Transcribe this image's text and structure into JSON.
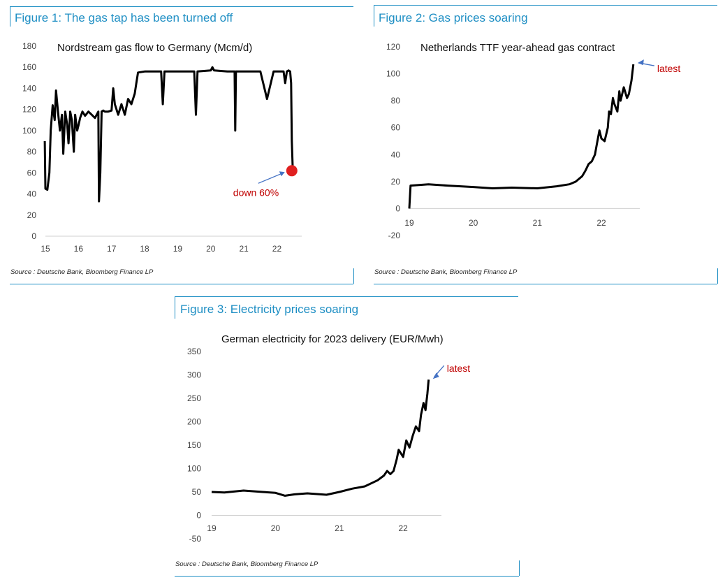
{
  "figures": [
    {
      "heading": "Figure 1: The gas tap has been turned off",
      "source": "Source : Deutsche Bank, Bloomberg Finance LP"
    },
    {
      "heading": "Figure 2: Gas prices soaring",
      "source": "Source : Deutsche Bank, Bloomberg Finance LP"
    },
    {
      "heading": "Figure 3: Electricity prices soaring",
      "source": "Source : Deutsche Bank, Bloomberg Finance LP"
    }
  ],
  "colors": {
    "frame": "#1f8fc4",
    "line": "#000000",
    "annotation": "#c00000",
    "arrow": "#4472c4",
    "marker": "#e02020"
  },
  "chart_data": [
    {
      "type": "line",
      "title": "Nordstream gas flow to Germany (Mcm/d)",
      "xlabel": "",
      "ylabel": "",
      "xlim": [
        15,
        22.75
      ],
      "ylim": [
        0,
        180
      ],
      "yticks": [
        0,
        20,
        40,
        60,
        80,
        100,
        120,
        140,
        160,
        180
      ],
      "xticks": [
        15,
        16,
        17,
        18,
        19,
        20,
        21,
        22
      ],
      "x": [
        14.98,
        15.0,
        15.06,
        15.12,
        15.16,
        15.22,
        15.28,
        15.32,
        15.38,
        15.44,
        15.5,
        15.54,
        15.6,
        15.66,
        15.7,
        15.75,
        15.8,
        15.86,
        15.9,
        15.96,
        16.0,
        16.05,
        16.12,
        16.2,
        16.3,
        16.4,
        16.5,
        16.6,
        16.62,
        16.66,
        16.7,
        16.75,
        16.8,
        16.9,
        17.0,
        17.05,
        17.1,
        17.2,
        17.3,
        17.4,
        17.5,
        17.6,
        17.7,
        17.75,
        17.8,
        18.0,
        18.5,
        18.55,
        18.6,
        19.0,
        19.5,
        19.55,
        19.6,
        20.0,
        20.05,
        20.1,
        20.5,
        20.72,
        20.74,
        20.76,
        21.0,
        21.5,
        21.7,
        21.9,
        22.0,
        22.2,
        22.25,
        22.3,
        22.35,
        22.4,
        22.43,
        22.45,
        22.48
      ],
      "values": [
        90,
        45,
        44,
        60,
        100,
        124,
        110,
        138,
        118,
        100,
        115,
        78,
        118,
        105,
        88,
        118,
        110,
        80,
        115,
        100,
        105,
        112,
        118,
        114,
        118,
        115,
        112,
        118,
        33,
        60,
        118,
        119,
        118,
        118,
        119,
        140,
        125,
        115,
        125,
        115,
        130,
        125,
        135,
        145,
        155,
        156,
        156,
        125,
        156,
        156,
        156,
        115,
        156,
        157,
        160,
        157,
        156,
        156,
        100,
        156,
        156,
        156,
        130,
        156,
        156,
        156,
        145,
        156,
        157,
        156,
        145,
        90,
        62
      ],
      "annotations": [
        {
          "text": "down 60%",
          "x": 22.45,
          "y": 62
        }
      ]
    },
    {
      "type": "line",
      "title": "Netherlands TTF year-ahead gas contract",
      "xlabel": "",
      "ylabel": "",
      "xlim": [
        19,
        22.6
      ],
      "ylim": [
        -20,
        120
      ],
      "yticks": [
        -20,
        0,
        20,
        40,
        60,
        80,
        100,
        120
      ],
      "xticks": [
        19,
        20,
        21,
        22
      ],
      "x": [
        19.0,
        19.02,
        19.3,
        19.6,
        20.0,
        20.3,
        20.6,
        21.0,
        21.3,
        21.5,
        21.6,
        21.7,
        21.75,
        21.8,
        21.85,
        21.9,
        21.93,
        21.97,
        22.0,
        22.05,
        22.1,
        22.12,
        22.15,
        22.18,
        22.2,
        22.25,
        22.28,
        22.3,
        22.35,
        22.4,
        22.43,
        22.47,
        22.5
      ],
      "values": [
        0,
        17,
        18,
        17,
        16,
        15,
        15.5,
        15,
        16.5,
        18,
        20,
        24,
        28,
        33,
        35,
        40,
        48,
        58,
        52,
        50,
        60,
        72,
        70,
        82,
        78,
        72,
        87,
        80,
        90,
        82,
        85,
        95,
        107
      ],
      "annotations": [
        {
          "text": "latest",
          "x": 22.5,
          "y": 107
        }
      ]
    },
    {
      "type": "line",
      "title": "German electricity for 2023 delivery (EUR/Mwh)",
      "xlabel": "",
      "ylabel": "",
      "xlim": [
        19,
        22.6
      ],
      "ylim": [
        -50,
        350
      ],
      "yticks": [
        -50,
        0,
        50,
        100,
        150,
        200,
        250,
        300,
        350
      ],
      "xticks": [
        19,
        20,
        21,
        22
      ],
      "x": [
        19.0,
        19.2,
        19.5,
        19.8,
        20.0,
        20.15,
        20.3,
        20.5,
        20.8,
        21.0,
        21.2,
        21.4,
        21.6,
        21.7,
        21.75,
        21.8,
        21.85,
        21.9,
        21.93,
        22.0,
        22.05,
        22.1,
        22.15,
        22.2,
        22.25,
        22.28,
        22.32,
        22.35,
        22.38,
        22.4
      ],
      "values": [
        50,
        49,
        53,
        50,
        48,
        42,
        45,
        47,
        44,
        50,
        57,
        62,
        75,
        85,
        95,
        88,
        95,
        120,
        140,
        125,
        160,
        145,
        170,
        190,
        180,
        215,
        240,
        225,
        260,
        290
      ],
      "annotations": [
        {
          "text": "latest",
          "x": 22.4,
          "y": 290
        }
      ]
    }
  ]
}
